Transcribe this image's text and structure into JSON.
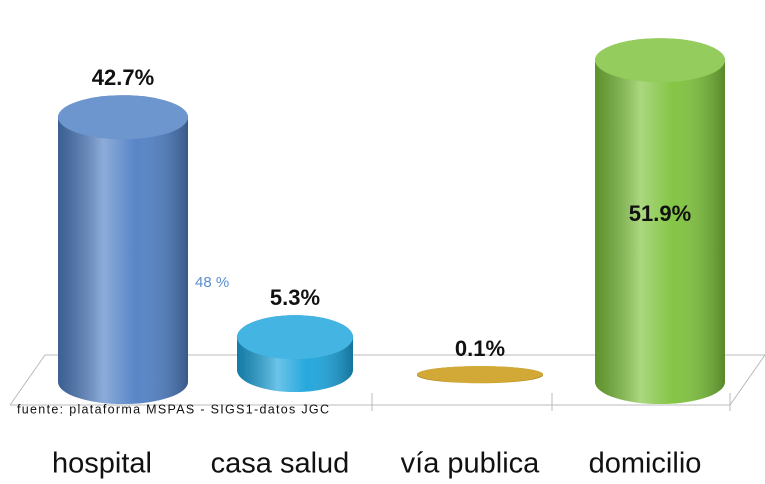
{
  "chart_data": {
    "type": "bar",
    "categories": [
      "hospital",
      "casa salud",
      "vía publica",
      "domicilio"
    ],
    "values": [
      42.7,
      5.3,
      0.1,
      51.9
    ],
    "value_labels": [
      "42.7%",
      "5.3%",
      "0.1%",
      "51.9%"
    ],
    "colors": [
      "#4f7fc4",
      "#1ba4dc",
      "#c9960a",
      "#7dc23b"
    ],
    "annotations": [
      "48 %",
      "fuente: plataforma MSPAS -  SIGS1-datos JGC"
    ]
  }
}
